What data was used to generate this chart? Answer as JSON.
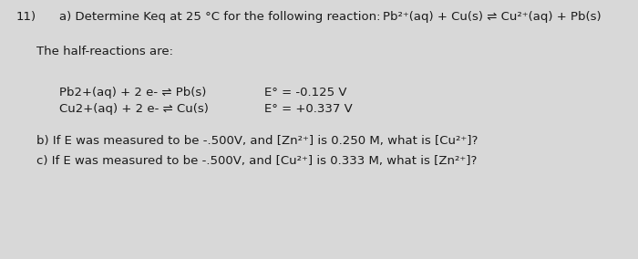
{
  "background_color": "#d8d8d8",
  "text_color": "#1a1a1a",
  "font_size": 9.5,
  "line1_num": "11)",
  "line1_a": "a) Determine Keq at 25 °C for the following reaction:",
  "line1_reaction": "Pb²⁺(aq) + Cu(s) ⇌ Cu²⁺(aq) + Pb(s)",
  "line2": "The half-reactions are:",
  "half1_eq": "Pb2+(aq) + 2 e- ⇌ Pb(s)",
  "half1_E": "E° = -0.125 V",
  "half2_eq": "Cu2+(aq) + 2 e- ⇌ Cu(s)",
  "half2_E": "E° = +0.337 V",
  "line_b": "b) If E was measured to be -.500V, and [Zn²⁺] is 0.250 M, what is [Cu²⁺]?",
  "line_c": "c) If E was measured to be -.500V, and [Cu²⁺] is 0.333 M, what is [Zn²⁺]?"
}
